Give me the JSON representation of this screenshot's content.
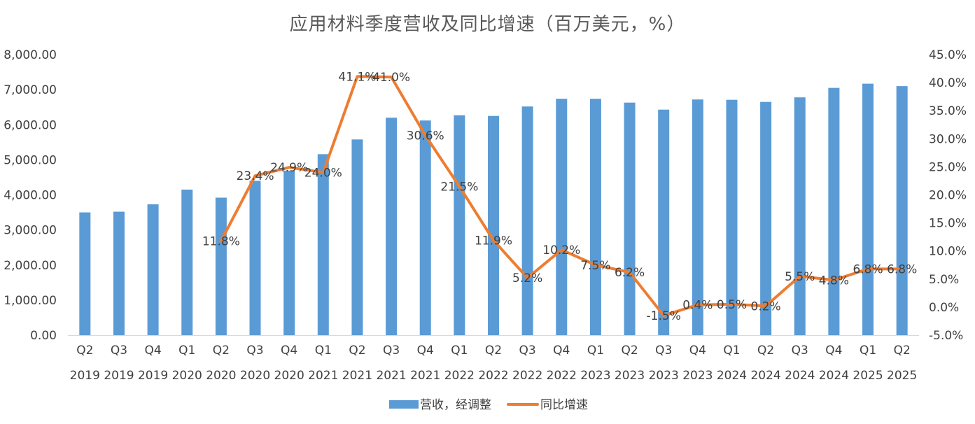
{
  "chart_data": {
    "type": "bar+line",
    "title": "应用材料季度营收及同比增速（百万美元，%）",
    "categories": [
      [
        "Q2",
        "2019"
      ],
      [
        "Q3",
        "2019"
      ],
      [
        "Q4",
        "2019"
      ],
      [
        "Q1",
        "2020"
      ],
      [
        "Q2",
        "2020"
      ],
      [
        "Q3",
        "2020"
      ],
      [
        "Q4",
        "2020"
      ],
      [
        "Q1",
        "2021"
      ],
      [
        "Q2",
        "2021"
      ],
      [
        "Q3",
        "2021"
      ],
      [
        "Q4",
        "2021"
      ],
      [
        "Q1",
        "2022"
      ],
      [
        "Q2",
        "2022"
      ],
      [
        "Q3",
        "2022"
      ],
      [
        "Q4",
        "2022"
      ],
      [
        "Q1",
        "2023"
      ],
      [
        "Q2",
        "2023"
      ],
      [
        "Q3",
        "2023"
      ],
      [
        "Q4",
        "2023"
      ],
      [
        "Q1",
        "2024"
      ],
      [
        "Q2",
        "2024"
      ],
      [
        "Q3",
        "2024"
      ],
      [
        "Q4",
        "2024"
      ],
      [
        "Q1",
        "2025"
      ],
      [
        "Q2",
        "2025"
      ]
    ],
    "series": [
      {
        "name": "营收，经调整",
        "type": "bar",
        "axis": "left",
        "color": "#5B9BD5",
        "values": [
          3500,
          3520,
          3730,
          4150,
          3920,
          4400,
          4690,
          5160,
          5580,
          6200,
          6120,
          6270,
          6250,
          6520,
          6740,
          6740,
          6630,
          6430,
          6720,
          6710,
          6650,
          6780,
          7050,
          7170,
          7100
        ]
      },
      {
        "name": "同比增速",
        "type": "line",
        "axis": "right",
        "color": "#ED7D31",
        "values": [
          null,
          null,
          null,
          null,
          11.8,
          23.4,
          24.9,
          24.0,
          41.1,
          41.0,
          30.6,
          21.5,
          11.9,
          5.2,
          10.2,
          7.5,
          6.2,
          -1.5,
          0.4,
          0.5,
          0.2,
          5.5,
          4.8,
          6.8,
          6.8
        ],
        "labels": [
          "",
          "",
          "",
          "",
          "11.8%",
          "23.4%",
          "24.9%",
          "24.0%",
          "41.1%",
          "41.0%",
          "30.6%",
          "21.5%",
          "11.9%",
          "5.2%",
          "10.2%",
          "7.5%",
          "6.2%",
          "-1.5%",
          "0.4%",
          "0.5%",
          "0.2%",
          "5.5%",
          "4.8%",
          "6.8%",
          "6.8%"
        ]
      }
    ],
    "y_left": {
      "ylim": [
        0,
        8000
      ],
      "ticks": [
        "0.00",
        "1,000.00",
        "2,000.00",
        "3,000.00",
        "4,000.00",
        "5,000.00",
        "6,000.00",
        "7,000.00",
        "8,000.00"
      ]
    },
    "y_right": {
      "ylim": [
        -5,
        45
      ],
      "ticks": [
        "-5.0%",
        "0.0%",
        "5.0%",
        "10.0%",
        "15.0%",
        "20.0%",
        "25.0%",
        "30.0%",
        "35.0%",
        "40.0%",
        "45.0%"
      ]
    },
    "grid": false,
    "legend": {
      "placement": "bottom",
      "items": [
        "营收，经调整",
        "同比增速"
      ]
    }
  }
}
